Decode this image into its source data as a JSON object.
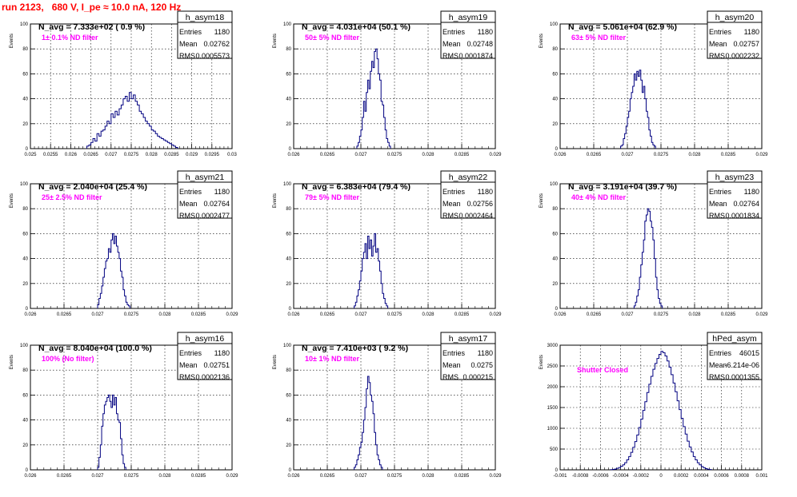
{
  "page_title": "run 2123,   680 V, I_pe ≈ 10.0 nA, 120 Hz",
  "colors": {
    "histogram": "#000080",
    "annotation": "#ff00ff",
    "title": "#ff0000",
    "grid": "#000000"
  },
  "chart_data": [
    {
      "type": "bar",
      "name": "h_asym18",
      "ylabel": "Events",
      "xlabel": "",
      "stats": [
        [
          "Entries",
          "1180"
        ],
        [
          "Mean",
          "0.02762"
        ],
        [
          "RMS",
          "0.0005573"
        ]
      ],
      "n_avg": "N_avg = 7.333e+02 ( 0.9 %)",
      "filter": "1± 0.1% ND filter",
      "xlim": [
        0.025,
        0.03
      ],
      "ylim": [
        0,
        100
      ],
      "xticks": [
        "0.025",
        "0.0255",
        "0.026",
        "0.0265",
        "0.027",
        "0.0275",
        "0.028",
        "0.0285",
        "0.029",
        "0.0295",
        "0.03"
      ],
      "xtick_values": [
        0.025,
        0.0255,
        0.026,
        0.0265,
        0.027,
        0.0275,
        0.028,
        0.0285,
        0.029,
        0.0295,
        0.03
      ],
      "yticks": [
        "0",
        "20",
        "40",
        "60",
        "80",
        "100"
      ],
      "ytick_values": [
        0,
        20,
        40,
        60,
        80,
        100
      ],
      "bins_start": 0.0264,
      "bin_width": 5e-05,
      "values": [
        2,
        3,
        5,
        8,
        6,
        12,
        10,
        14,
        15,
        18,
        22,
        20,
        28,
        25,
        30,
        27,
        32,
        35,
        40,
        42,
        38,
        45,
        40,
        43,
        38,
        35,
        30,
        28,
        25,
        22,
        20,
        18,
        15,
        14,
        12,
        10,
        9,
        8,
        7,
        6,
        5,
        4,
        3,
        2,
        1
      ]
    },
    {
      "type": "bar",
      "name": "h_asym19",
      "ylabel": "Events",
      "xlabel": "",
      "stats": [
        [
          "Entries",
          "1180"
        ],
        [
          "Mean",
          "0.02748"
        ],
        [
          "RMS",
          "0.0001874"
        ]
      ],
      "n_avg": "N_avg = 4.031e+04 (50.1 %)",
      "filter": "50± 5% ND filter",
      "xlim": [
        0.026,
        0.029
      ],
      "ylim": [
        0,
        100
      ],
      "xticks": [
        "0.026",
        "0.0265",
        "0.027",
        "0.0275",
        "0.028",
        "0.0285",
        "0.029"
      ],
      "xtick_values": [
        0.026,
        0.0265,
        0.027,
        0.0275,
        0.028,
        0.0285,
        0.029
      ],
      "yticks": [
        "0",
        "20",
        "40",
        "60",
        "80",
        "100"
      ],
      "ytick_values": [
        0,
        20,
        40,
        60,
        80,
        100
      ],
      "bins_start": 0.02694,
      "bin_width": 2e-05,
      "values": [
        2,
        5,
        10,
        15,
        25,
        38,
        30,
        45,
        55,
        48,
        62,
        70,
        65,
        78,
        80,
        72,
        60,
        55,
        38,
        35,
        25,
        15,
        8,
        5,
        2
      ]
    },
    {
      "type": "bar",
      "name": "h_asym20",
      "ylabel": "Events",
      "xlabel": "",
      "stats": [
        [
          "Entries",
          "1180"
        ],
        [
          "Mean",
          "0.02757"
        ],
        [
          "RMS",
          "0.0002232"
        ]
      ],
      "n_avg": "N_avg = 5.061e+04 (62.9 %)",
      "filter": "63± 5% ND filter",
      "xlim": [
        0.026,
        0.029
      ],
      "ylim": [
        0,
        100
      ],
      "xticks": [
        "0.026",
        "0.0265",
        "0.027",
        "0.0275",
        "0.028",
        "0.0285",
        "0.029"
      ],
      "xtick_values": [
        0.026,
        0.0265,
        0.027,
        0.0275,
        0.028,
        0.0285,
        0.029
      ],
      "yticks": [
        "0",
        "20",
        "40",
        "60",
        "80",
        "100"
      ],
      "ytick_values": [
        0,
        20,
        40,
        60,
        80,
        100
      ],
      "bins_start": 0.0269,
      "bin_width": 2e-05,
      "values": [
        2,
        3,
        8,
        12,
        18,
        25,
        30,
        40,
        45,
        50,
        60,
        55,
        62,
        58,
        63,
        55,
        45,
        50,
        40,
        30,
        25,
        15,
        10,
        5,
        3,
        2
      ]
    },
    {
      "type": "bar",
      "name": "h_asym21",
      "ylabel": "Events",
      "xlabel": "",
      "stats": [
        [
          "Entries",
          "1180"
        ],
        [
          "Mean",
          "0.02764"
        ],
        [
          "RMS",
          "0.0002477"
        ]
      ],
      "n_avg": "N_avg = 2.040e+04 (25.4 %)",
      "filter": "25± 2.5% ND filter",
      "xlim": [
        0.026,
        0.029
      ],
      "ylim": [
        0,
        100
      ],
      "xticks": [
        "0.026",
        "0.0265",
        "0.027",
        "0.0275",
        "0.028",
        "0.0285",
        "0.029"
      ],
      "xtick_values": [
        0.026,
        0.0265,
        0.027,
        0.0275,
        0.028,
        0.0285,
        0.029
      ],
      "yticks": [
        "0",
        "20",
        "40",
        "60",
        "80",
        "100"
      ],
      "ytick_values": [
        0,
        20,
        40,
        60,
        80,
        100
      ],
      "bins_start": 0.027,
      "bin_width": 2e-05,
      "values": [
        3,
        8,
        12,
        18,
        25,
        32,
        38,
        40,
        48,
        45,
        55,
        60,
        52,
        58,
        50,
        45,
        40,
        30,
        25,
        15,
        10,
        5,
        3,
        2
      ]
    },
    {
      "type": "bar",
      "name": "h_asym22",
      "ylabel": "Events",
      "xlabel": "",
      "stats": [
        [
          "Entries",
          "1180"
        ],
        [
          "Mean",
          "0.02756"
        ],
        [
          "RMS",
          "0.0002464"
        ]
      ],
      "n_avg": "N_avg = 6.383e+04 (79.4 %)",
      "filter": "79± 5% ND filter",
      "xlim": [
        0.026,
        0.029
      ],
      "ylim": [
        0,
        100
      ],
      "xticks": [
        "0.026",
        "0.0265",
        "0.027",
        "0.0275",
        "0.028",
        "0.0285",
        "0.029"
      ],
      "xtick_values": [
        0.026,
        0.0265,
        0.027,
        0.0275,
        0.028,
        0.0285,
        0.029
      ],
      "yticks": [
        "0",
        "20",
        "40",
        "60",
        "80",
        "100"
      ],
      "ytick_values": [
        0,
        20,
        40,
        60,
        80,
        100
      ],
      "bins_start": 0.0269,
      "bin_width": 2e-05,
      "values": [
        2,
        5,
        10,
        15,
        22,
        30,
        40,
        45,
        52,
        40,
        58,
        48,
        55,
        42,
        50,
        60,
        45,
        48,
        38,
        30,
        20,
        12,
        8,
        4,
        2
      ]
    },
    {
      "type": "bar",
      "name": "h_asym23",
      "ylabel": "Events",
      "xlabel": "",
      "stats": [
        [
          "Entries",
          "1180"
        ],
        [
          "Mean",
          "0.02764"
        ],
        [
          "RMS",
          "0.0001834"
        ]
      ],
      "n_avg": "N_avg = 3.191e+04 (39.7 %)",
      "filter": "40± 4% ND filter",
      "xlim": [
        0.026,
        0.029
      ],
      "ylim": [
        0,
        100
      ],
      "xticks": [
        "0.026",
        "0.0265",
        "0.027",
        "0.0275",
        "0.028",
        "0.0285",
        "0.029"
      ],
      "xtick_values": [
        0.026,
        0.0265,
        0.027,
        0.0275,
        0.028,
        0.0285,
        0.029
      ],
      "yticks": [
        "0",
        "20",
        "40",
        "60",
        "80",
        "100"
      ],
      "ytick_values": [
        0,
        20,
        40,
        60,
        80,
        100
      ],
      "bins_start": 0.0271,
      "bin_width": 2e-05,
      "values": [
        2,
        5,
        10,
        15,
        25,
        35,
        45,
        55,
        70,
        75,
        80,
        78,
        70,
        65,
        55,
        40,
        25,
        15,
        8,
        4,
        2
      ]
    },
    {
      "type": "bar",
      "name": "h_asym16",
      "ylabel": "Events",
      "xlabel": "",
      "stats": [
        [
          "Entries",
          "1180"
        ],
        [
          "Mean",
          "0.02751"
        ],
        [
          "RMS",
          "0.0002136"
        ]
      ],
      "n_avg": "N_avg = 8.040e+04 (100.0 %)",
      "filter": "100% (No filter)",
      "xlim": [
        0.026,
        0.029
      ],
      "ylim": [
        0,
        100
      ],
      "xticks": [
        "0.026",
        "0.0265",
        "0.027",
        "0.0275",
        "0.028",
        "0.0285",
        "0.029"
      ],
      "xtick_values": [
        0.026,
        0.0265,
        0.027,
        0.0275,
        0.028,
        0.0285,
        0.029
      ],
      "yticks": [
        "0",
        "20",
        "40",
        "60",
        "80",
        "100"
      ],
      "ytick_values": [
        0,
        20,
        40,
        60,
        80,
        100
      ],
      "bins_start": 0.027,
      "bin_width": 2e-05,
      "values": [
        2,
        10,
        20,
        35,
        45,
        52,
        55,
        58,
        60,
        55,
        50,
        60,
        52,
        58,
        45,
        40,
        38,
        25,
        12,
        5,
        2
      ]
    },
    {
      "type": "bar",
      "name": "h_asym17",
      "ylabel": "Events",
      "xlabel": "",
      "stats": [
        [
          "Entries",
          "1180"
        ],
        [
          "Mean",
          "0.0275"
        ],
        [
          "RMS",
          "0.000215"
        ]
      ],
      "n_avg": "N_avg = 7.410e+03 ( 9.2 %)",
      "filter": "10± 1% ND filter",
      "xlim": [
        0.026,
        0.029
      ],
      "ylim": [
        0,
        100
      ],
      "xticks": [
        "0.026",
        "0.0265",
        "0.027",
        "0.0275",
        "0.028",
        "0.0285",
        "0.029"
      ],
      "xtick_values": [
        0.026,
        0.0265,
        0.027,
        0.0275,
        0.028,
        0.0285,
        0.029
      ],
      "yticks": [
        "0",
        "20",
        "40",
        "60",
        "80",
        "100"
      ],
      "ytick_values": [
        0,
        20,
        40,
        60,
        80,
        100
      ],
      "bins_start": 0.0269,
      "bin_width": 2e-05,
      "values": [
        2,
        4,
        8,
        12,
        18,
        22,
        30,
        40,
        50,
        65,
        75,
        70,
        60,
        55,
        45,
        30,
        20,
        12,
        8,
        4,
        2
      ]
    },
    {
      "type": "bar",
      "name": "hPed_asym",
      "ylabel": "Events",
      "xlabel": "",
      "stats": [
        [
          "Entries",
          "46015"
        ],
        [
          "Mean",
          "-6.214e-06"
        ],
        [
          "RMS",
          "0.0001355"
        ]
      ],
      "n_avg": "",
      "filter": "Shutter Closed",
      "xlim": [
        -0.001,
        0.001
      ],
      "ylim": [
        0,
        3000
      ],
      "xticks": [
        "-0.001",
        "-0.0008",
        "-0.0006",
        "-0.0004",
        "-0.0002",
        "0",
        "0.0002",
        "0.0004",
        "0.0006",
        "0.0008",
        "0.001"
      ],
      "xtick_values": [
        -0.001,
        -0.0008,
        -0.0006,
        -0.0004,
        -0.0002,
        0,
        0.0002,
        0.0004,
        0.0006,
        0.0008,
        0.001
      ],
      "yticks": [
        "0",
        "500",
        "1000",
        "1500",
        "2000",
        "2500",
        "3000"
      ],
      "ytick_values": [
        0,
        500,
        1000,
        1500,
        2000,
        2500,
        3000
      ],
      "bins_start": -0.0005,
      "bin_width": 2e-05,
      "values": [
        5,
        10,
        20,
        35,
        55,
        85,
        120,
        170,
        240,
        320,
        420,
        540,
        680,
        840,
        1020,
        1220,
        1430,
        1640,
        1860,
        2060,
        2250,
        2420,
        2560,
        2680,
        2780,
        2850,
        2820,
        2740,
        2620,
        2470,
        2290,
        2090,
        1880,
        1660,
        1450,
        1240,
        1040,
        860,
        690,
        550,
        430,
        320,
        240,
        170,
        120,
        80,
        50,
        30,
        15,
        8
      ]
    }
  ]
}
